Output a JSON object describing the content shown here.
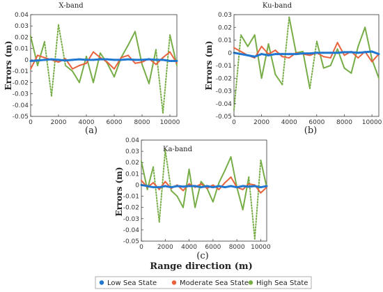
{
  "figure": {
    "xlabel": "Range direction  (m)",
    "colors": {
      "low": "#1f77d0",
      "moderate": "#e8613c",
      "high": "#77ad47"
    }
  },
  "legend": {
    "entries": [
      {
        "name": "Low Sea State",
        "color": "#1f77d0"
      },
      {
        "name": "Moderate Sea State",
        "color": "#e8613c"
      },
      {
        "name": "High Sea State",
        "color": "#77ad47"
      }
    ]
  },
  "chart_data": [
    {
      "type": "line",
      "title": "X-band",
      "caption": "(a)",
      "ylabel": "Errors (m)",
      "xlim": [
        0,
        10500
      ],
      "ylim": [
        -0.05,
        0.04
      ],
      "xticks": [
        "0",
        "2000",
        "4000",
        "6000",
        "8000",
        "10000"
      ],
      "yticks": [
        "0.04",
        "0.03",
        "0.02",
        "0.01",
        "0",
        "-0.01",
        "-0.02",
        "-0.03",
        "-0.04",
        "-0.05"
      ],
      "x": [
        0,
        500,
        1000,
        1500,
        2000,
        2500,
        3000,
        3500,
        4000,
        4500,
        5000,
        5500,
        6000,
        6500,
        7000,
        7500,
        8000,
        8500,
        9000,
        9500,
        10000,
        10500
      ],
      "series": [
        {
          "name": "Low Sea State",
          "values": [
            -0.001,
            -0.0005,
            0.0,
            0.0005,
            0.0,
            -0.0005,
            0.0,
            0.0005,
            0.0,
            0.0,
            0.0005,
            0.0005,
            0.0,
            0.0,
            0.0005,
            0.0,
            0.0,
            0.0005,
            0.0,
            0.0,
            -0.001,
            -0.001
          ]
        },
        {
          "name": "Moderate Sea State",
          "values": [
            -0.008,
            0.004,
            0.002,
            0.0,
            -0.002,
            0.001,
            -0.008,
            -0.005,
            -0.003,
            0.007,
            0.002,
            -0.002,
            -0.008,
            0.002,
            0.004,
            -0.003,
            -0.002,
            0.001,
            -0.004,
            0.002,
            0.007,
            -0.003
          ]
        },
        {
          "name": "High Sea State",
          "values": [
            0.021,
            -0.005,
            0.016,
            -0.032,
            0.031,
            -0.005,
            -0.01,
            -0.02,
            0.003,
            -0.02,
            0.006,
            -0.003,
            -0.015,
            0.002,
            0.013,
            0.025,
            -0.004,
            -0.021,
            0.009,
            -0.047,
            0.022,
            -0.005
          ]
        }
      ]
    },
    {
      "type": "line",
      "title": "Ku-band",
      "caption": "(b)",
      "ylabel": "Errors (m)",
      "xlim": [
        0,
        10500
      ],
      "ylim": [
        -0.05,
        0.03
      ],
      "xticks": [
        "0",
        "2000",
        "4000",
        "6000",
        "8000",
        "10000"
      ],
      "yticks": [
        "0.03",
        "0.02",
        "0.01",
        "0",
        "-0.01",
        "-0.02",
        "-0.03",
        "-0.04",
        "-0.05"
      ],
      "x": [
        0,
        500,
        1000,
        1500,
        2000,
        2500,
        3000,
        3500,
        4000,
        4500,
        5000,
        5500,
        6000,
        6500,
        7000,
        7500,
        8000,
        8500,
        9000,
        9500,
        10000,
        10500
      ],
      "series": [
        {
          "name": "Low Sea State",
          "values": [
            0.0,
            -0.001,
            -0.002,
            -0.003,
            -0.001,
            -0.002,
            -0.001,
            -0.001,
            -0.001,
            -0.001,
            -0.0005,
            -0.0005,
            0.0,
            0.0,
            0.0,
            0.0,
            0.0005,
            0.0005,
            0.0,
            0.0005,
            0.001,
            -0.001
          ]
        },
        {
          "name": "Moderate Sea State",
          "values": [
            0.004,
            0.001,
            -0.002,
            -0.004,
            0.005,
            -0.001,
            0.002,
            -0.003,
            -0.004,
            0.0,
            -0.001,
            -0.002,
            0.0,
            -0.003,
            -0.004,
            0.008,
            -0.002,
            0.001,
            -0.004,
            0.001,
            -0.007,
            -0.001
          ]
        },
        {
          "name": "High Sea State",
          "values": [
            -0.045,
            0.014,
            0.005,
            0.014,
            -0.02,
            0.007,
            -0.017,
            -0.025,
            0.028,
            0.0,
            0.001,
            -0.028,
            0.009,
            -0.012,
            -0.01,
            0.003,
            -0.012,
            -0.016,
            0.005,
            0.02,
            -0.005,
            -0.02
          ]
        }
      ]
    },
    {
      "type": "line",
      "title": "Ka-band",
      "caption": "(c)",
      "ylabel": "Errors (m)",
      "xlim": [
        0,
        10500
      ],
      "ylim": [
        -0.05,
        0.04
      ],
      "xticks": [
        "0",
        "2000",
        "4000",
        "6000",
        "8000",
        "10000"
      ],
      "yticks": [
        "0.04",
        "0.03",
        "0.02",
        "0.01",
        "0",
        "-0.01",
        "-0.02",
        "-0.03",
        "-0.04",
        "-0.05"
      ],
      "x": [
        0,
        500,
        1000,
        1500,
        2000,
        2500,
        3000,
        3500,
        4000,
        4500,
        5000,
        5500,
        6000,
        6500,
        7000,
        7500,
        8000,
        8500,
        9000,
        9500,
        10000,
        10500
      ],
      "series": [
        {
          "name": "Low Sea State",
          "values": [
            0.0,
            -0.001,
            -0.002,
            -0.002,
            -0.001,
            -0.002,
            -0.001,
            -0.0015,
            -0.001,
            -0.001,
            -0.002,
            -0.001,
            -0.002,
            -0.001,
            -0.002,
            -0.001,
            -0.002,
            -0.001,
            -0.0015,
            -0.001,
            -0.002,
            -0.001
          ]
        },
        {
          "name": "Moderate Sea State",
          "values": [
            0.004,
            -0.002,
            0.002,
            -0.004,
            0.003,
            -0.003,
            0.0,
            -0.005,
            0.001,
            -0.002,
            0.001,
            -0.003,
            0.0,
            -0.004,
            0.002,
            0.007,
            -0.002,
            -0.004,
            0.001,
            0.0,
            -0.007,
            -0.002
          ]
        },
        {
          "name": "High Sea State",
          "values": [
            0.021,
            -0.004,
            0.016,
            -0.033,
            0.031,
            -0.005,
            -0.01,
            -0.02,
            0.014,
            -0.02,
            0.003,
            -0.003,
            -0.015,
            0.002,
            0.013,
            0.025,
            -0.002,
            -0.022,
            0.007,
            -0.048,
            0.022,
            -0.002
          ]
        }
      ]
    }
  ]
}
